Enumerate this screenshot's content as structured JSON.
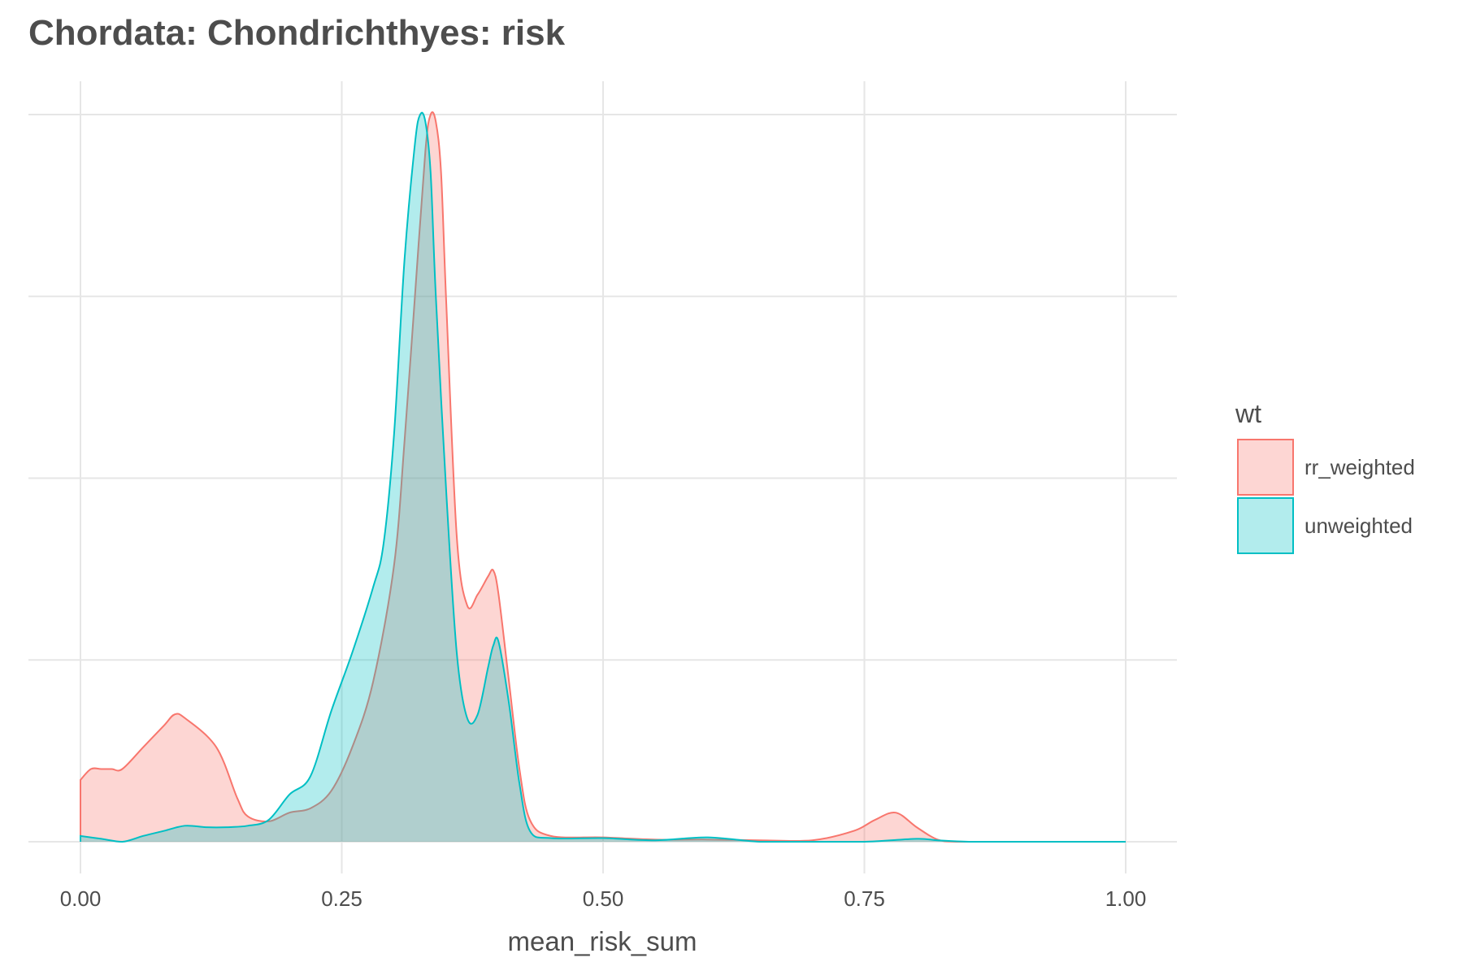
{
  "chart_data": {
    "type": "area",
    "title": "Chordata: Chondrichthyes: risk",
    "xlabel": "mean_risk_sum",
    "ylabel": "",
    "xlim": [
      0,
      1
    ],
    "xticks": [
      0,
      0.25,
      0.5,
      0.75,
      1
    ],
    "xtick_labels": [
      "0.00",
      "0.25",
      "0.50",
      "0.75",
      "1.00"
    ],
    "ylim": [
      0,
      1
    ],
    "y_gridlines": [
      0,
      0.25,
      0.5,
      0.75,
      1.0
    ],
    "y_tick_labels_shown": false,
    "grid": true,
    "legend": {
      "title": "wt",
      "position": "right"
    },
    "series": [
      {
        "name": "rr_weighted",
        "line_color": "#F8766D",
        "fill_color": "#F8766D",
        "fill_opacity": 0.3,
        "x": [
          0.0,
          0.01,
          0.02,
          0.03,
          0.04,
          0.06,
          0.08,
          0.09,
          0.1,
          0.13,
          0.15,
          0.16,
          0.18,
          0.2,
          0.22,
          0.24,
          0.26,
          0.28,
          0.3,
          0.31,
          0.32,
          0.33,
          0.335,
          0.34,
          0.345,
          0.35,
          0.36,
          0.37,
          0.38,
          0.39,
          0.395,
          0.4,
          0.41,
          0.42,
          0.43,
          0.45,
          0.5,
          0.55,
          0.6,
          0.65,
          0.7,
          0.74,
          0.76,
          0.78,
          0.8,
          0.82,
          0.84,
          0.9,
          1.0
        ],
        "y": [
          0.085,
          0.1,
          0.1,
          0.1,
          0.1,
          0.13,
          0.16,
          0.175,
          0.17,
          0.13,
          0.06,
          0.035,
          0.028,
          0.04,
          0.046,
          0.07,
          0.13,
          0.22,
          0.38,
          0.55,
          0.75,
          0.95,
          1.0,
          0.99,
          0.92,
          0.74,
          0.42,
          0.325,
          0.34,
          0.365,
          0.373,
          0.34,
          0.22,
          0.1,
          0.03,
          0.008,
          0.006,
          0.003,
          0.003,
          0.002,
          0.002,
          0.015,
          0.03,
          0.04,
          0.02,
          0.003,
          0.0,
          0.0,
          0.0
        ]
      },
      {
        "name": "unweighted",
        "line_color": "#00BFC4",
        "fill_color": "#00BFC4",
        "fill_opacity": 0.3,
        "x": [
          0.0,
          0.02,
          0.04,
          0.06,
          0.08,
          0.1,
          0.12,
          0.14,
          0.16,
          0.18,
          0.2,
          0.22,
          0.24,
          0.26,
          0.28,
          0.29,
          0.3,
          0.31,
          0.32,
          0.325,
          0.33,
          0.335,
          0.34,
          0.35,
          0.36,
          0.37,
          0.38,
          0.39,
          0.395,
          0.4,
          0.41,
          0.42,
          0.43,
          0.45,
          0.5,
          0.55,
          0.6,
          0.65,
          0.7,
          0.75,
          0.8,
          0.82,
          0.85,
          0.9,
          1.0
        ],
        "y": [
          0.008,
          0.004,
          0.0,
          0.008,
          0.015,
          0.022,
          0.02,
          0.02,
          0.022,
          0.03,
          0.065,
          0.09,
          0.18,
          0.26,
          0.35,
          0.41,
          0.56,
          0.8,
          0.96,
          1.0,
          0.99,
          0.92,
          0.75,
          0.48,
          0.26,
          0.17,
          0.175,
          0.24,
          0.27,
          0.275,
          0.19,
          0.08,
          0.015,
          0.005,
          0.005,
          0.002,
          0.006,
          0.0,
          0.0,
          0.0,
          0.004,
          0.002,
          0.0,
          0.0,
          0.0
        ]
      }
    ]
  }
}
